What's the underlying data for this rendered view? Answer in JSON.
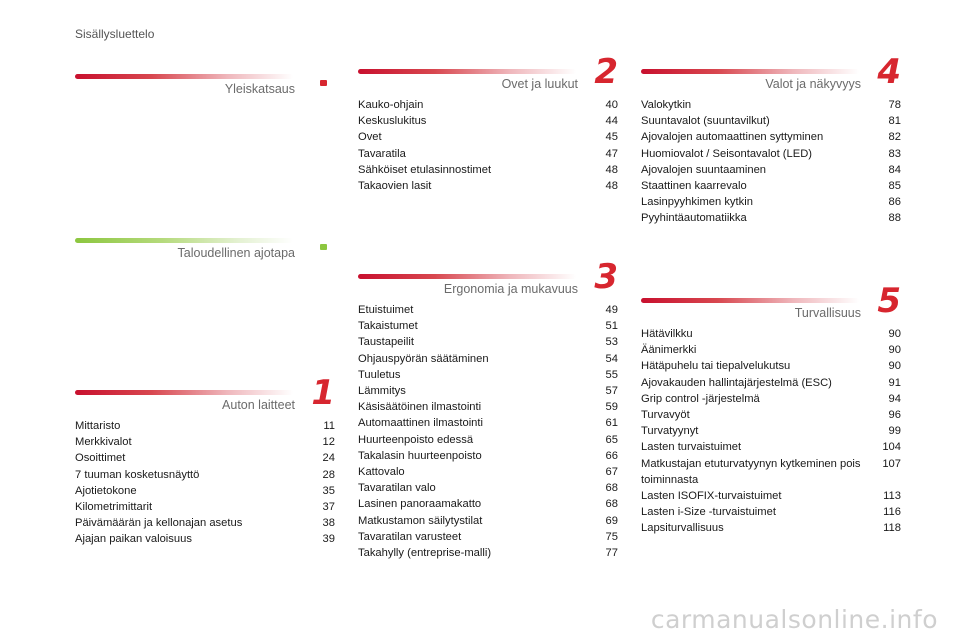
{
  "page_title": "Sisällysluettelo",
  "sections": {
    "yleiskatsaus": {
      "title": "Yleiskatsaus",
      "number": "."
    },
    "taloudellinen": {
      "title": "Taloudellinen ajotapa",
      "number": "."
    },
    "auton_laitteet": {
      "title": "Auton laitteet",
      "number": "1",
      "entries": [
        {
          "text": "Mittaristo",
          "page": "11"
        },
        {
          "text": "Merkkivalot",
          "page": "12"
        },
        {
          "text": "Osoittimet",
          "page": "24"
        },
        {
          "text": "7 tuuman kosketusnäyttö",
          "page": "28"
        },
        {
          "text": "Ajotietokone",
          "page": "35"
        },
        {
          "text": "Kilometrimittarit",
          "page": "37"
        },
        {
          "text": "Päivämäärän ja kellonajan asetus",
          "page": "38"
        },
        {
          "text": "Ajajan paikan valoisuus",
          "page": "39"
        }
      ]
    },
    "ovet_ja_luukut": {
      "title": "Ovet ja luukut",
      "number": "2",
      "entries": [
        {
          "text": "Kauko-ohjain",
          "page": "40"
        },
        {
          "text": "Keskuslukitus",
          "page": "44"
        },
        {
          "text": "Ovet",
          "page": "45"
        },
        {
          "text": "Tavaratila",
          "page": "47"
        },
        {
          "text": "Sähköiset etulasinnostimet",
          "page": "48"
        },
        {
          "text": "Takaovien lasit",
          "page": "48"
        }
      ]
    },
    "ergonomia": {
      "title": "Ergonomia ja mukavuus",
      "number": "3",
      "entries": [
        {
          "text": "Etuistuimet",
          "page": "49"
        },
        {
          "text": "Takaistumet",
          "page": "51"
        },
        {
          "text": "Taustapeilit",
          "page": "53"
        },
        {
          "text": "Ohjauspyörän säätäminen",
          "page": "54"
        },
        {
          "text": "Tuuletus",
          "page": "55"
        },
        {
          "text": "Lämmitys",
          "page": "57"
        },
        {
          "text": "Käsisäätöinen ilmastointi",
          "page": "59"
        },
        {
          "text": "Automaattinen ilmastointi",
          "page": "61"
        },
        {
          "text": "Huurteenpoisto edessä",
          "page": "65"
        },
        {
          "text": "Takalasin huurteenpoisto",
          "page": "66"
        },
        {
          "text": "Kattovalo",
          "page": "67"
        },
        {
          "text": "Tavaratilan valo",
          "page": "68"
        },
        {
          "text": "Lasinen panoraamakatto",
          "page": "68"
        },
        {
          "text": "Matkustamon säilytystilat",
          "page": "69"
        },
        {
          "text": "Tavaratilan varusteet",
          "page": "75"
        },
        {
          "text": "Takahylly (entreprise-malli)",
          "page": "77"
        }
      ]
    },
    "valot": {
      "title": "Valot ja näkyvyys",
      "number": "4",
      "entries": [
        {
          "text": "Valokytkin",
          "page": "78"
        },
        {
          "text": "Suuntavalot (suuntavilkut)",
          "page": "81"
        },
        {
          "text": "Ajovalojen automaattinen syttyminen",
          "page": "82"
        },
        {
          "text": "Huomiovalot / Seisontavalot (LED)",
          "page": "83"
        },
        {
          "text": "Ajovalojen suuntaaminen",
          "page": "84"
        },
        {
          "text": "Staattinen kaarrevalo",
          "page": "85"
        },
        {
          "text": "Lasinpyyhkimen kytkin",
          "page": "86"
        },
        {
          "text": "Pyyhintäautomatiikka",
          "page": "88"
        }
      ]
    },
    "turvallisuus": {
      "title": "Turvallisuus",
      "number": "5",
      "entries": [
        {
          "text": "Hätävilkku",
          "page": "90"
        },
        {
          "text": "Äänimerkki",
          "page": "90"
        },
        {
          "text": "Hätäpuhelu tai tiepalvelukutsu",
          "page": "90"
        },
        {
          "text": "Ajovakauden hallintajärjestelmä (ESC)",
          "page": "91"
        },
        {
          "text": "Grip control -järjestelmä",
          "page": "94"
        },
        {
          "text": "Turvavyöt",
          "page": "96"
        },
        {
          "text": "Turvatyynyt",
          "page": "99"
        },
        {
          "text": "Lasten turvaistuimet",
          "page": "104"
        },
        {
          "text": "Matkustajan etuturvatyynyn kytkeminen pois toiminnasta",
          "page": "107"
        },
        {
          "text": "Lasten ISOFIX-turvaistuimet",
          "page": "113"
        },
        {
          "text": "Lasten i-Size -turvaistuimet",
          "page": "116"
        },
        {
          "text": "Lapsiturvallisuus",
          "page": "118"
        }
      ]
    }
  },
  "watermark": "carmanualsonline.info",
  "colors": {
    "accent_red": "#d7262f",
    "accent_green": "#8cc63f"
  }
}
